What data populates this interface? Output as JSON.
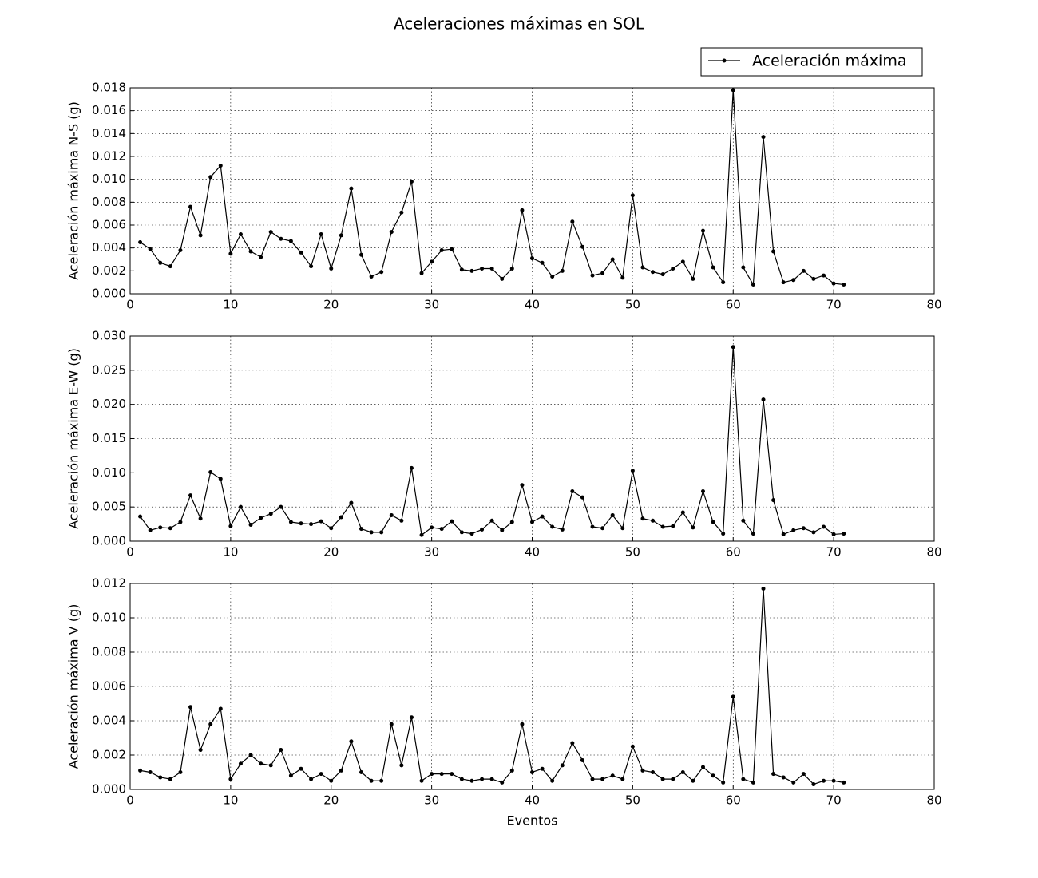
{
  "title": "Aceleraciones máximas en SOL",
  "chart_data": [
    {
      "type": "line",
      "ylabel": "Aceleración máxima N-S (g)",
      "x": [
        1,
        2,
        3,
        4,
        5,
        6,
        7,
        8,
        9,
        10,
        11,
        12,
        13,
        14,
        15,
        16,
        17,
        18,
        19,
        20,
        21,
        22,
        23,
        24,
        25,
        26,
        27,
        28,
        29,
        30,
        31,
        32,
        33,
        34,
        35,
        36,
        37,
        38,
        39,
        40,
        41,
        42,
        43,
        44,
        45,
        46,
        47,
        48,
        49,
        50,
        51,
        52,
        53,
        54,
        55,
        56,
        57,
        58,
        59,
        60,
        61,
        62,
        63,
        64,
        65,
        66,
        67,
        68,
        69,
        70,
        71
      ],
      "series": [
        {
          "name": "Aceleración máxima",
          "color": "#000000",
          "values": [
            0.0045,
            0.0039,
            0.0027,
            0.0024,
            0.0038,
            0.0076,
            0.0051,
            0.0102,
            0.0112,
            0.0035,
            0.0052,
            0.0037,
            0.0032,
            0.0054,
            0.0048,
            0.0046,
            0.0036,
            0.0024,
            0.0052,
            0.0022,
            0.0051,
            0.0092,
            0.0034,
            0.0015,
            0.0019,
            0.0054,
            0.0071,
            0.0098,
            0.0018,
            0.0028,
            0.0038,
            0.0039,
            0.0021,
            0.002,
            0.0022,
            0.0022,
            0.0013,
            0.0022,
            0.0073,
            0.0031,
            0.0027,
            0.0015,
            0.002,
            0.0063,
            0.0041,
            0.0016,
            0.0018,
            0.003,
            0.0014,
            0.0086,
            0.0023,
            0.0019,
            0.0017,
            0.0022,
            0.0028,
            0.0013,
            0.0055,
            0.0023,
            0.001,
            0.0178,
            0.0023,
            0.0008,
            0.0137,
            0.0037,
            0.001,
            0.0012,
            0.002,
            0.0013,
            0.0016,
            0.0009,
            0.0008
          ]
        }
      ],
      "xlim": [
        0,
        80
      ],
      "xticks": [
        0,
        10,
        20,
        30,
        40,
        50,
        60,
        70,
        80
      ],
      "ylim": [
        0,
        0.018
      ],
      "yticks": [
        {
          "value": 0,
          "label": "0.000"
        },
        {
          "value": 0.002,
          "label": "0.002"
        },
        {
          "value": 0.004,
          "label": "0.004"
        },
        {
          "value": 0.006,
          "label": "0.006"
        },
        {
          "value": 0.008,
          "label": "0.008"
        },
        {
          "value": 0.01,
          "label": "0.010"
        },
        {
          "value": 0.012,
          "label": "0.012"
        },
        {
          "value": 0.014,
          "label": "0.014"
        },
        {
          "value": 0.016,
          "label": "0.016"
        },
        {
          "value": 0.018,
          "label": "0.018"
        }
      ],
      "grid": true
    },
    {
      "type": "line",
      "ylabel": "Aceleración máxima E-W (g)",
      "x": [
        1,
        2,
        3,
        4,
        5,
        6,
        7,
        8,
        9,
        10,
        11,
        12,
        13,
        14,
        15,
        16,
        17,
        18,
        19,
        20,
        21,
        22,
        23,
        24,
        25,
        26,
        27,
        28,
        29,
        30,
        31,
        32,
        33,
        34,
        35,
        36,
        37,
        38,
        39,
        40,
        41,
        42,
        43,
        44,
        45,
        46,
        47,
        48,
        49,
        50,
        51,
        52,
        53,
        54,
        55,
        56,
        57,
        58,
        59,
        60,
        61,
        62,
        63,
        64,
        65,
        66,
        67,
        68,
        69,
        70,
        71
      ],
      "series": [
        {
          "color": "#000000",
          "values": [
            0.0036,
            0.0016,
            0.002,
            0.0019,
            0.0028,
            0.0067,
            0.0033,
            0.0101,
            0.0091,
            0.0022,
            0.005,
            0.0024,
            0.0034,
            0.004,
            0.005,
            0.0028,
            0.0026,
            0.0025,
            0.0029,
            0.0019,
            0.0035,
            0.0056,
            0.0018,
            0.0013,
            0.0013,
            0.0038,
            0.003,
            0.0107,
            0.0009,
            0.002,
            0.0018,
            0.0029,
            0.0013,
            0.0011,
            0.0017,
            0.003,
            0.0016,
            0.0028,
            0.0082,
            0.0028,
            0.0036,
            0.0021,
            0.0017,
            0.0073,
            0.0064,
            0.0021,
            0.0019,
            0.0038,
            0.0019,
            0.0103,
            0.0033,
            0.003,
            0.0021,
            0.0022,
            0.0042,
            0.002,
            0.0073,
            0.0028,
            0.0011,
            0.0284,
            0.003,
            0.0011,
            0.0207,
            0.006,
            0.001,
            0.0016,
            0.0019,
            0.0013,
            0.0021,
            0.001,
            0.0011
          ]
        }
      ],
      "xlim": [
        0,
        80
      ],
      "xticks": [
        0,
        10,
        20,
        30,
        40,
        50,
        60,
        70,
        80
      ],
      "ylim": [
        0,
        0.03
      ],
      "yticks": [
        {
          "value": 0,
          "label": "0.000"
        },
        {
          "value": 0.005,
          "label": "0.005"
        },
        {
          "value": 0.01,
          "label": "0.010"
        },
        {
          "value": 0.015,
          "label": "0.015"
        },
        {
          "value": 0.02,
          "label": "0.020"
        },
        {
          "value": 0.025,
          "label": "0.025"
        },
        {
          "value": 0.03,
          "label": "0.030"
        }
      ],
      "grid": true
    },
    {
      "type": "line",
      "ylabel": "Aceleración máxima V (g)",
      "xlabel": "Eventos",
      "x": [
        1,
        2,
        3,
        4,
        5,
        6,
        7,
        8,
        9,
        10,
        11,
        12,
        13,
        14,
        15,
        16,
        17,
        18,
        19,
        20,
        21,
        22,
        23,
        24,
        25,
        26,
        27,
        28,
        29,
        30,
        31,
        32,
        33,
        34,
        35,
        36,
        37,
        38,
        39,
        40,
        41,
        42,
        43,
        44,
        45,
        46,
        47,
        48,
        49,
        50,
        51,
        52,
        53,
        54,
        55,
        56,
        57,
        58,
        59,
        60,
        61,
        62,
        63,
        64,
        65,
        66,
        67,
        68,
        69,
        70,
        71
      ],
      "series": [
        {
          "color": "#000000",
          "values": [
            0.0011,
            0.001,
            0.0007,
            0.0006,
            0.001,
            0.0048,
            0.0023,
            0.0038,
            0.0047,
            0.0006,
            0.0015,
            0.002,
            0.0015,
            0.0014,
            0.0023,
            0.0008,
            0.0012,
            0.0006,
            0.0009,
            0.0005,
            0.0011,
            0.0028,
            0.001,
            0.0005,
            0.0005,
            0.0038,
            0.0014,
            0.0042,
            0.0005,
            0.0009,
            0.0009,
            0.0009,
            0.0006,
            0.0005,
            0.0006,
            0.0006,
            0.0004,
            0.0011,
            0.0038,
            0.001,
            0.0012,
            0.0005,
            0.0014,
            0.0027,
            0.0017,
            0.0006,
            0.0006,
            0.0008,
            0.0006,
            0.0025,
            0.0011,
            0.001,
            0.0006,
            0.0006,
            0.001,
            0.0005,
            0.0013,
            0.0008,
            0.0004,
            0.0054,
            0.0006,
            0.0004,
            0.0117,
            0.0009,
            0.0007,
            0.0004,
            0.0009,
            0.0003,
            0.0005,
            0.0005,
            0.0004
          ]
        }
      ],
      "xlim": [
        0,
        80
      ],
      "xticks": [
        0,
        10,
        20,
        30,
        40,
        50,
        60,
        70,
        80
      ],
      "ylim": [
        0,
        0.012
      ],
      "yticks": [
        {
          "value": 0,
          "label": "0.000"
        },
        {
          "value": 0.002,
          "label": "0.002"
        },
        {
          "value": 0.004,
          "label": "0.004"
        },
        {
          "value": 0.006,
          "label": "0.006"
        },
        {
          "value": 0.008,
          "label": "0.008"
        },
        {
          "value": 0.01,
          "label": "0.010"
        },
        {
          "value": 0.012,
          "label": "0.012"
        }
      ],
      "grid": true
    }
  ]
}
